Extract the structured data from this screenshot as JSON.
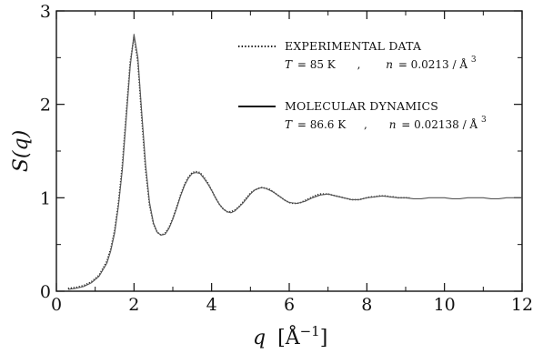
{
  "chart_data": {
    "type": "line",
    "title": "",
    "xlabel_symbol": "q",
    "xlabel_unit": "Å",
    "xlabel_unit_exp": "−1",
    "ylabel": "S(q)",
    "xlim": [
      0,
      12
    ],
    "ylim": [
      0,
      3
    ],
    "xticks": [
      "0",
      "2",
      "4",
      "6",
      "8",
      "10",
      "12"
    ],
    "yticks": [
      "0",
      "1",
      "2",
      "3"
    ],
    "grid": false,
    "legend_position": "top-right",
    "series": [
      {
        "name": "EXPERIMENTAL DATA",
        "style": "dotted",
        "params": {
          "T_symbol": "T",
          "T_value": "= 85 K",
          "sep": ",",
          "n_symbol": "n",
          "n_value": "= 0.0213 / Å",
          "n_exp": "3"
        },
        "x": [
          0.3,
          0.5,
          0.7,
          0.9,
          1.1,
          1.3,
          1.4,
          1.5,
          1.6,
          1.7,
          1.8,
          1.9,
          2.0,
          2.1,
          2.2,
          2.3,
          2.4,
          2.5,
          2.6,
          2.7,
          2.8,
          2.9,
          3.0,
          3.1,
          3.2,
          3.3,
          3.4,
          3.5,
          3.6,
          3.7,
          3.8,
          3.9,
          4.0,
          4.1,
          4.2,
          4.3,
          4.4,
          4.5,
          4.6,
          4.7,
          4.8,
          4.9,
          5.0,
          5.1,
          5.2,
          5.3,
          5.4,
          5.5,
          5.6,
          5.7,
          5.8,
          5.9,
          6.0,
          6.1,
          6.2,
          6.3,
          6.4,
          6.5,
          6.6,
          6.7,
          6.8,
          6.9,
          7.0,
          7.1,
          7.2,
          7.3,
          7.4,
          7.5,
          7.6,
          7.7,
          7.8,
          7.9,
          8.0,
          8.1,
          8.2,
          8.3,
          8.4,
          8.5,
          8.6,
          8.7,
          8.8,
          8.9,
          9.0,
          9.1
        ],
        "y": [
          0.03,
          0.04,
          0.06,
          0.1,
          0.17,
          0.32,
          0.45,
          0.65,
          0.95,
          1.35,
          1.9,
          2.45,
          2.72,
          2.45,
          1.85,
          1.3,
          0.92,
          0.72,
          0.63,
          0.6,
          0.62,
          0.68,
          0.78,
          0.9,
          1.03,
          1.14,
          1.22,
          1.27,
          1.28,
          1.27,
          1.22,
          1.16,
          1.08,
          1.0,
          0.93,
          0.88,
          0.85,
          0.85,
          0.87,
          0.9,
          0.95,
          1.0,
          1.05,
          1.08,
          1.1,
          1.11,
          1.1,
          1.09,
          1.06,
          1.03,
          1.0,
          0.97,
          0.95,
          0.94,
          0.94,
          0.95,
          0.97,
          0.99,
          1.01,
          1.03,
          1.04,
          1.04,
          1.04,
          1.03,
          1.02,
          1.01,
          1.0,
          0.99,
          0.98,
          0.98,
          0.98,
          0.99,
          1.0,
          1.01,
          1.01,
          1.02,
          1.02,
          1.02,
          1.01,
          1.01,
          1.0,
          1.0,
          1.0,
          1.0
        ]
      },
      {
        "name": "MOLECULAR DYNAMICS",
        "style": "solid",
        "params": {
          "T_symbol": "T",
          "T_value": "= 86.6 K",
          "sep": ",",
          "n_symbol": "n",
          "n_value": "= 0.02138 / Å",
          "n_exp": "3"
        },
        "x": [
          0.3,
          0.5,
          0.7,
          0.9,
          1.1,
          1.3,
          1.4,
          1.5,
          1.6,
          1.7,
          1.8,
          1.9,
          2.0,
          2.1,
          2.2,
          2.3,
          2.4,
          2.5,
          2.6,
          2.7,
          2.8,
          2.9,
          3.0,
          3.1,
          3.2,
          3.3,
          3.4,
          3.5,
          3.6,
          3.7,
          3.8,
          3.9,
          4.0,
          4.1,
          4.2,
          4.3,
          4.4,
          4.5,
          4.6,
          4.7,
          4.8,
          4.9,
          5.0,
          5.1,
          5.2,
          5.3,
          5.4,
          5.5,
          5.6,
          5.7,
          5.8,
          5.9,
          6.0,
          6.2,
          6.4,
          6.6,
          6.8,
          7.0,
          7.2,
          7.4,
          7.6,
          7.8,
          8.0,
          8.2,
          8.4,
          8.6,
          8.8,
          9.0,
          9.2,
          9.4,
          9.6,
          9.8,
          10.0,
          10.2,
          10.4,
          10.6,
          10.8,
          11.0,
          11.2,
          11.4,
          11.6,
          11.8,
          12.0
        ],
        "y": [
          0.02,
          0.03,
          0.05,
          0.09,
          0.16,
          0.3,
          0.43,
          0.62,
          0.92,
          1.3,
          1.85,
          2.4,
          2.75,
          2.5,
          1.9,
          1.35,
          0.95,
          0.73,
          0.63,
          0.6,
          0.61,
          0.67,
          0.77,
          0.89,
          1.02,
          1.13,
          1.21,
          1.26,
          1.27,
          1.26,
          1.21,
          1.15,
          1.08,
          1.0,
          0.93,
          0.88,
          0.85,
          0.84,
          0.86,
          0.9,
          0.94,
          0.99,
          1.04,
          1.08,
          1.1,
          1.11,
          1.1,
          1.08,
          1.06,
          1.03,
          1.0,
          0.97,
          0.95,
          0.94,
          0.96,
          1.0,
          1.03,
          1.04,
          1.02,
          1.0,
          0.98,
          0.98,
          1.0,
          1.01,
          1.02,
          1.01,
          1.0,
          1.0,
          0.99,
          0.99,
          1.0,
          1.0,
          1.0,
          0.99,
          0.99,
          1.0,
          1.0,
          1.0,
          0.99,
          0.99,
          1.0,
          1.0,
          1.0
        ]
      }
    ]
  }
}
